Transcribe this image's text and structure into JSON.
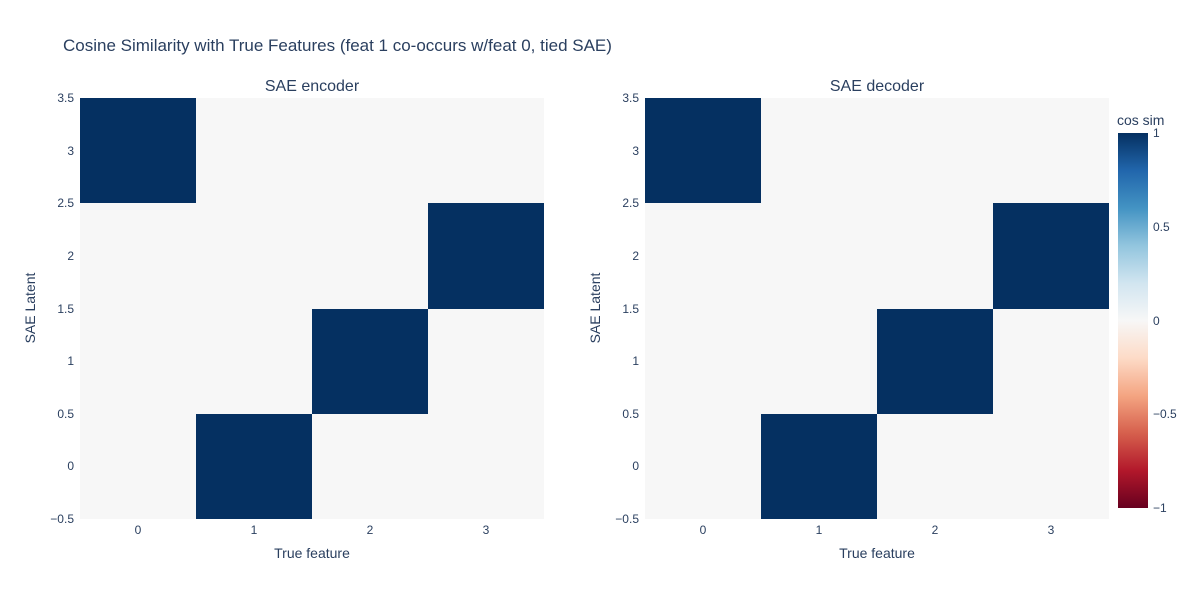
{
  "page": {
    "background_color": "#ffffff",
    "text_color": "#2a3f5f"
  },
  "title": "Cosine Similarity with True Features (feat 1 co-occurs w/feat 0, tied SAE)",
  "chart_data": [
    {
      "type": "heatmap",
      "title": "SAE encoder",
      "xlabel": "True feature",
      "ylabel": "SAE Latent",
      "x": [
        0,
        1,
        2,
        3
      ],
      "y": [
        0,
        1,
        2,
        3
      ],
      "z_rows_bottom_to_top": [
        [
          0,
          1,
          0,
          0
        ],
        [
          0,
          0,
          1,
          0
        ],
        [
          0,
          0,
          0,
          1
        ],
        [
          1,
          0,
          0,
          0
        ]
      ],
      "xlim": [
        -0.5,
        3.5
      ],
      "ylim": [
        -0.5,
        3.5
      ],
      "zmin": -1,
      "zmax": 1,
      "xtick_labels": [
        "0",
        "1",
        "2",
        "3"
      ],
      "xtick_values": [
        0,
        1,
        2,
        3
      ],
      "ytick_labels_top_to_bottom": [
        "3.5",
        "3",
        "2.5",
        "2",
        "1.5",
        "1",
        "0.5",
        "0",
        "−0.5"
      ],
      "ytick_values_top_to_bottom": [
        3.5,
        3,
        2.5,
        2,
        1.5,
        1,
        0.5,
        0,
        -0.5
      ],
      "grid": false,
      "legend": false
    },
    {
      "type": "heatmap",
      "title": "SAE decoder",
      "xlabel": "True feature",
      "ylabel": "SAE Latent",
      "x": [
        0,
        1,
        2,
        3
      ],
      "y": [
        0,
        1,
        2,
        3
      ],
      "z_rows_bottom_to_top": [
        [
          0,
          1,
          0,
          0
        ],
        [
          0,
          0,
          1,
          0
        ],
        [
          0,
          0,
          0,
          1
        ],
        [
          1,
          0,
          0,
          0
        ]
      ],
      "xlim": [
        -0.5,
        3.5
      ],
      "ylim": [
        -0.5,
        3.5
      ],
      "zmin": -1,
      "zmax": 1,
      "xtick_labels": [
        "0",
        "1",
        "2",
        "3"
      ],
      "xtick_values": [
        0,
        1,
        2,
        3
      ],
      "ytick_labels_top_to_bottom": [
        "3.5",
        "3",
        "2.5",
        "2",
        "1.5",
        "1",
        "0.5",
        "0",
        "−0.5"
      ],
      "ytick_values_top_to_bottom": [
        3.5,
        3,
        2.5,
        2,
        1.5,
        1,
        0.5,
        0,
        -0.5
      ],
      "grid": false,
      "legend": false
    }
  ],
  "colorbar": {
    "title": "cos sim",
    "zmin": -1,
    "zmax": 1,
    "tick_labels": [
      "1",
      "0.5",
      "0",
      "−0.5",
      "−1"
    ],
    "tick_values": [
      1,
      0.5,
      0,
      -0.5,
      -1
    ],
    "colorscale_name": "RdBu",
    "colorscale": [
      {
        "pos": 0.0,
        "color": "#67001f"
      },
      {
        "pos": 0.1,
        "color": "#b2182b"
      },
      {
        "pos": 0.2,
        "color": "#d6604d"
      },
      {
        "pos": 0.3,
        "color": "#f4a582"
      },
      {
        "pos": 0.4,
        "color": "#fddbc7"
      },
      {
        "pos": 0.5,
        "color": "#f7f7f7"
      },
      {
        "pos": 0.6,
        "color": "#d1e5f0"
      },
      {
        "pos": 0.7,
        "color": "#92c5de"
      },
      {
        "pos": 0.8,
        "color": "#4393c3"
      },
      {
        "pos": 0.9,
        "color": "#2166ac"
      },
      {
        "pos": 1.0,
        "color": "#053061"
      }
    ],
    "max_cell_color": "#053061",
    "zero_cell_color": "#f7f6f5"
  }
}
